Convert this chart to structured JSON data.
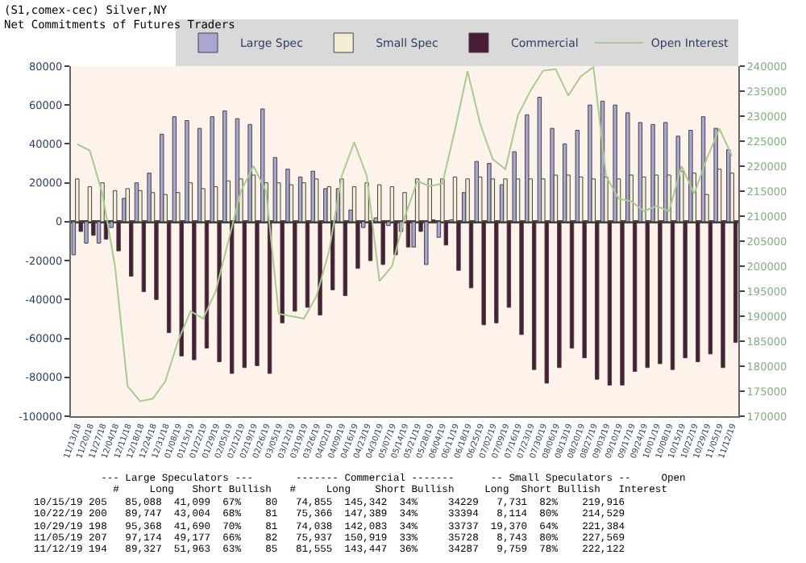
{
  "chart_data": {
    "type": "bar",
    "title": "(S1,comex-cec) Silver,NY\nNet Commitments of Futures Traders",
    "categories": [
      "11/13/18",
      "11/20/18",
      "11/27/18",
      "12/04/18",
      "12/11/18",
      "12/18/18",
      "12/24/18",
      "12/31/18",
      "01/08/19",
      "01/15/19",
      "01/22/19",
      "01/29/19",
      "02/05/19",
      "02/12/19",
      "02/19/19",
      "02/26/19",
      "03/05/19",
      "03/12/19",
      "03/19/19",
      "03/26/19",
      "04/02/19",
      "04/09/19",
      "04/16/19",
      "04/23/19",
      "04/30/19",
      "05/07/19",
      "05/14/19",
      "05/21/19",
      "05/28/19",
      "06/04/19",
      "06/11/19",
      "06/18/19",
      "06/25/19",
      "07/02/19",
      "07/09/19",
      "07/16/19",
      "07/23/19",
      "07/30/19",
      "08/06/19",
      "08/13/19",
      "08/20/19",
      "08/27/19",
      "09/03/19",
      "09/10/19",
      "09/17/19",
      "09/24/19",
      "10/01/19",
      "10/08/19",
      "10/15/19",
      "10/22/19",
      "10/29/19",
      "11/05/19",
      "11/12/19"
    ],
    "series": [
      {
        "name": "Large Spec",
        "color": "#a9a6d2",
        "values": [
          -17000,
          -11000,
          -11000,
          -3000,
          12000,
          20000,
          25000,
          45000,
          54000,
          52000,
          48000,
          54000,
          57000,
          53000,
          50000,
          58000,
          33000,
          27000,
          23000,
          26000,
          17000,
          17000,
          6000,
          -3000,
          2000,
          -2000,
          -5000,
          -13000,
          -22000,
          -8000,
          1000,
          15000,
          31000,
          30000,
          19000,
          36000,
          55000,
          64000,
          48000,
          40000,
          47000,
          60000,
          62000,
          60000,
          56000,
          51000,
          50000,
          51000,
          44000,
          47000,
          54000,
          48000,
          37000
        ]
      },
      {
        "name": "Small Spec",
        "color": "#f2eed4",
        "values": [
          22000,
          18000,
          20000,
          16000,
          17000,
          16000,
          15000,
          14000,
          15000,
          20000,
          17000,
          18000,
          21000,
          22000,
          24000,
          20000,
          20000,
          19000,
          20000,
          22000,
          18000,
          22000,
          18000,
          20000,
          19000,
          18000,
          15000,
          22000,
          22000,
          22000,
          23000,
          22000,
          23000,
          22000,
          22000,
          22000,
          22000,
          22000,
          24000,
          24000,
          23000,
          22000,
          23000,
          22000,
          24000,
          23000,
          24000,
          24000,
          26000,
          25000,
          14000,
          27000,
          25000
        ]
      },
      {
        "name": "Commercial",
        "color": "#4a1c36",
        "values": [
          -5000,
          -7000,
          -9000,
          -15000,
          -28000,
          -36000,
          -40000,
          -57000,
          -69000,
          -71000,
          -65000,
          -72000,
          -78000,
          -75000,
          -74000,
          -78000,
          -52000,
          -46000,
          -44000,
          -48000,
          -35000,
          -38000,
          -24000,
          -20000,
          -22000,
          -17000,
          -13000,
          -5000,
          1000,
          -12000,
          -25000,
          -34000,
          -53000,
          -52000,
          -44000,
          -58000,
          -76000,
          -83000,
          -75000,
          -65000,
          -70000,
          -81000,
          -84000,
          -84000,
          -77000,
          -75000,
          -73000,
          -76000,
          -70000,
          -72000,
          -68000,
          -75000,
          -62000
        ]
      },
      {
        "name": "Open Interest",
        "type": "line",
        "axis": "y2",
        "color": "#a8cc90",
        "values": [
          224400,
          223100,
          214500,
          200000,
          176000,
          173000,
          173500,
          177000,
          185000,
          191000,
          189500,
          195000,
          205000,
          215000,
          220000,
          215000,
          190500,
          190000,
          189500,
          194000,
          203000,
          218000,
          224800,
          218000,
          197000,
          200000,
          209700,
          217000,
          216000,
          216500,
          227300,
          239000,
          228500,
          221400,
          219400,
          230200,
          235100,
          239100,
          239400,
          234100,
          238000,
          239800,
          218000,
          213500,
          213000,
          211000,
          212000,
          211000,
          220000,
          214500,
          221500,
          227500,
          222000
        ]
      }
    ],
    "ylim": [
      -100000,
      80000
    ],
    "yticks": [
      -100000,
      -80000,
      -60000,
      -40000,
      -20000,
      0,
      20000,
      40000,
      60000,
      80000
    ],
    "y2lim": [
      170000,
      240000
    ],
    "y2ticks": [
      170000,
      175000,
      180000,
      185000,
      190000,
      195000,
      200000,
      205000,
      210000,
      215000,
      220000,
      225000,
      230000,
      235000,
      240000
    ],
    "legend": "top right",
    "annotations": [
      "           --- Large Speculators ---       ------- Commercial -------      -- Small Speculators --     Open",
      "             #     Long   Short Bullish   #     Long    Short Bullish     Long  Short Bullish   Interest",
      "10/15/19 205   85,088  41,099  67%    80   74,855  145,342  34%     34229   7,731  82%    219,916",
      "10/22/19 200   89,747  43,004  68%    81   75,366  147,389  34%     33394   8,114  80%    214,529",
      "10/29/19 198   95,368  41,690  70%    81   74,038  142,083  34%     33737  19,370  64%    221,384",
      "11/05/19 207   97,174  49,177  66%    82   75,937  150,919  33%     35728   8,743  80%    227,569",
      "11/12/19 194   89,327  51,963  63%    85   81,555  143,447  36%     34287   9,759  78%    222,122"
    ]
  }
}
